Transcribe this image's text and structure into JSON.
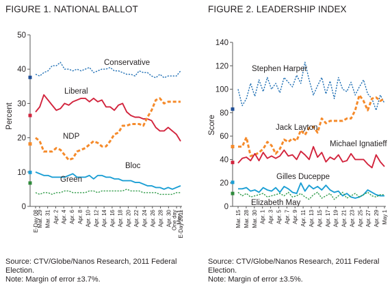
{
  "figures": {
    "fig1": {
      "title": "FIGURE 1. NATIONAL BALLOT",
      "source": "Source: CTV/Globe/Nanos Research, 2011 Federal Election.",
      "note": "Note: Margin of error ±3.7%."
    },
    "fig2": {
      "title": "FIGURE 2. LEADERSHIP INDEX",
      "source": "Source: CTV/Globe/Nanos Research, 2011 Federal Election.",
      "note": "Note: Margin of error ±3.5%."
    }
  },
  "chart_data": [
    {
      "type": "line",
      "title": "FIGURE 1. NATIONAL BALLOT",
      "ylabel": "Percent",
      "xlabel": "",
      "ylim": [
        0,
        50
      ],
      "yticks": [
        0,
        10,
        20,
        30,
        40,
        50
      ],
      "grid": false,
      "x_tick_labels": [
        "E-Day 08",
        "Mar. 29",
        "Mar. 31",
        "Apr. 2",
        "Apr. 4",
        "Apr. 6",
        "Apr. 8",
        "Apr. 10",
        "Apr. 12",
        "Apr. 14",
        "Apr. 16",
        "Apr. 18",
        "Apr. 20",
        "Apr. 22",
        "Apr. 24",
        "Apr. 26",
        "Apr. 28",
        "Apr. 30",
        "One day May 1",
        "E-Day 2011"
      ],
      "x_tick_positions": [
        0,
        1,
        3,
        5,
        7,
        9,
        11,
        13,
        15,
        17,
        19,
        21,
        23,
        25,
        27,
        29,
        31,
        33,
        35,
        36
      ],
      "x_range": [
        0,
        36
      ],
      "series": [
        {
          "name": "Conservative",
          "color": "#1f6fb4",
          "style": "dotted",
          "anchor": 37.6,
          "anchor_color": "#1f4e96",
          "values": [
            38.5,
            38,
            39,
            39.5,
            41,
            41,
            42,
            40,
            40,
            39.5,
            40,
            39.5,
            40,
            40.5,
            39,
            39.5,
            40,
            40,
            40.5,
            39.5,
            39.5,
            39,
            38.5,
            38.5,
            38,
            39.5,
            39,
            39,
            38,
            37.5,
            38.5,
            37.5,
            38,
            38,
            38,
            39.5
          ]
        },
        {
          "name": "Liberal",
          "color": "#d2233c",
          "style": "solid",
          "anchor": 26.5,
          "anchor_color": "#d2233c",
          "values": [
            27.5,
            29,
            32.5,
            31,
            29.5,
            28,
            28.5,
            30,
            29.5,
            30.5,
            31,
            31.5,
            31.5,
            30.5,
            31.5,
            30.5,
            31,
            29,
            29,
            28,
            29.5,
            30,
            27.5,
            26.5,
            26,
            26,
            25.5,
            25.5,
            25,
            23,
            22,
            22,
            23,
            22,
            21,
            19
          ]
        },
        {
          "name": "NDP",
          "color": "#f58a2a",
          "style": "dashed",
          "anchor": 18.2,
          "anchor_color": "#f58a2a",
          "values": [
            20,
            19,
            16,
            16,
            16,
            17,
            16.5,
            15,
            13.5,
            14,
            16,
            16.5,
            17,
            18,
            19,
            18.5,
            17.5,
            17.5,
            19,
            21,
            21.5,
            23.5,
            23.5,
            24,
            24,
            24,
            23.5,
            26,
            28,
            31,
            31.5,
            30,
            30.5,
            30.5,
            30.5,
            30.5
          ]
        },
        {
          "name": "Bloc",
          "color": "#1a9ed4",
          "style": "solid",
          "anchor": 9.9,
          "anchor_color": "#1a9ed4",
          "values": [
            10,
            9.5,
            9,
            9,
            8.5,
            8.5,
            8.5,
            8.5,
            9,
            9.5,
            8.5,
            8.5,
            8.5,
            9,
            8,
            9,
            9,
            8.5,
            8.5,
            8,
            8,
            7.5,
            7.5,
            7.5,
            7,
            7,
            6.5,
            6,
            6,
            5.5,
            5.5,
            5,
            5.5,
            5,
            5.5,
            6
          ]
        },
        {
          "name": "Green",
          "color": "#2e9a47",
          "style": "dotted",
          "anchor": 6.8,
          "anchor_color": "#2e8a3a",
          "values": [
            4,
            3.5,
            4,
            4,
            3.5,
            4,
            4,
            4.5,
            4.5,
            4,
            4,
            4,
            4,
            4.5,
            4.5,
            4,
            4.5,
            4.5,
            4.5,
            4.5,
            4.5,
            4.5,
            5,
            4.5,
            4.5,
            4.5,
            4,
            4,
            4,
            4,
            3.5,
            3.5,
            3.5,
            3.5,
            4,
            4
          ]
        }
      ]
    },
    {
      "type": "line",
      "title": "FIGURE 2. LEADERSHIP INDEX",
      "ylabel": "Score",
      "xlabel": "",
      "ylim": [
        0,
        140
      ],
      "yticks": [
        0,
        20,
        40,
        60,
        80,
        100,
        120,
        140
      ],
      "grid": false,
      "x_tick_labels": [
        "Mar. 15",
        "Mar. 28",
        "Mar. 30",
        "Apr. 1",
        "Apr. 3",
        "Apr. 5",
        "Apr. 7",
        "Apr. 9",
        "Apr. 11",
        "Apr. 13",
        "Apr. 15",
        "Apr. 17",
        "Apr. 19",
        "Apr. 21",
        "Apr. 23",
        "Apr. 25",
        "Apr. 27",
        "Apr. 29",
        "May 1"
      ],
      "x_tick_positions": [
        0,
        2,
        4,
        6,
        8,
        10,
        12,
        14,
        16,
        18,
        20,
        22,
        24,
        26,
        28,
        30,
        32,
        34,
        36
      ],
      "x_range": [
        0,
        36
      ],
      "series": [
        {
          "name": "Stephen Harper",
          "color": "#1f6fb4",
          "style": "dotted",
          "anchor": 83,
          "anchor_color": "#1f4e96",
          "values": [
            100,
            86,
            92,
            105,
            94,
            108,
            98,
            110,
            100,
            105,
            97,
            110,
            106,
            102,
            112,
            105,
            123,
            108,
            95,
            103,
            110,
            96,
            107,
            92,
            110,
            100,
            98,
            106,
            95,
            102,
            108,
            96,
            92,
            82,
            95,
            88
          ]
        },
        {
          "name": "Jack Layton",
          "color": "#f58a2a",
          "style": "dashed",
          "anchor": 51,
          "anchor_color": "#f58a2a",
          "values": [
            51,
            51,
            59,
            43,
            44,
            46,
            49,
            55,
            52,
            45,
            49,
            57,
            55,
            58,
            56,
            65,
            61,
            67,
            68,
            63,
            75,
            71,
            73,
            73,
            73,
            73,
            75,
            75,
            82,
            95,
            90,
            82,
            92,
            93,
            90,
            92
          ]
        },
        {
          "name": "Michael Ignatieff",
          "color": "#d2233c",
          "style": "solid",
          "anchor": 37.5,
          "anchor_color": "#d2233c",
          "values": [
            37,
            41,
            42,
            39,
            45,
            39,
            46,
            41,
            43,
            41,
            43,
            48,
            43,
            44,
            40,
            47,
            44,
            40,
            51,
            42,
            46,
            38,
            42,
            40,
            44,
            38,
            39,
            45,
            40,
            40,
            40,
            36,
            33,
            44,
            38,
            34
          ]
        },
        {
          "name": "Gilles Duceppe",
          "color": "#1a9ed4",
          "style": "solid",
          "anchor": 20.5,
          "anchor_color": "#1a9ed4",
          "values": [
            15,
            15,
            16,
            13,
            14,
            12,
            16,
            14,
            13,
            16,
            12,
            17,
            15,
            12,
            11,
            20,
            13,
            18,
            15,
            17,
            14,
            18,
            14,
            12,
            13,
            9,
            11,
            8,
            7,
            8,
            10,
            14,
            12,
            10,
            9,
            9
          ]
        },
        {
          "name": "Elizabeth May",
          "color": "#2e9a47",
          "style": "dotted",
          "anchor": 11,
          "anchor_color": "#2e8a3a",
          "values": [
            12,
            9,
            11,
            8,
            9,
            10,
            11,
            8,
            9,
            10,
            11,
            9,
            12,
            8,
            9,
            11,
            8,
            6,
            10,
            12,
            7,
            9,
            11,
            6,
            9,
            12,
            7,
            9,
            11,
            8,
            10,
            12,
            9,
            8,
            10,
            10
          ]
        }
      ]
    }
  ]
}
